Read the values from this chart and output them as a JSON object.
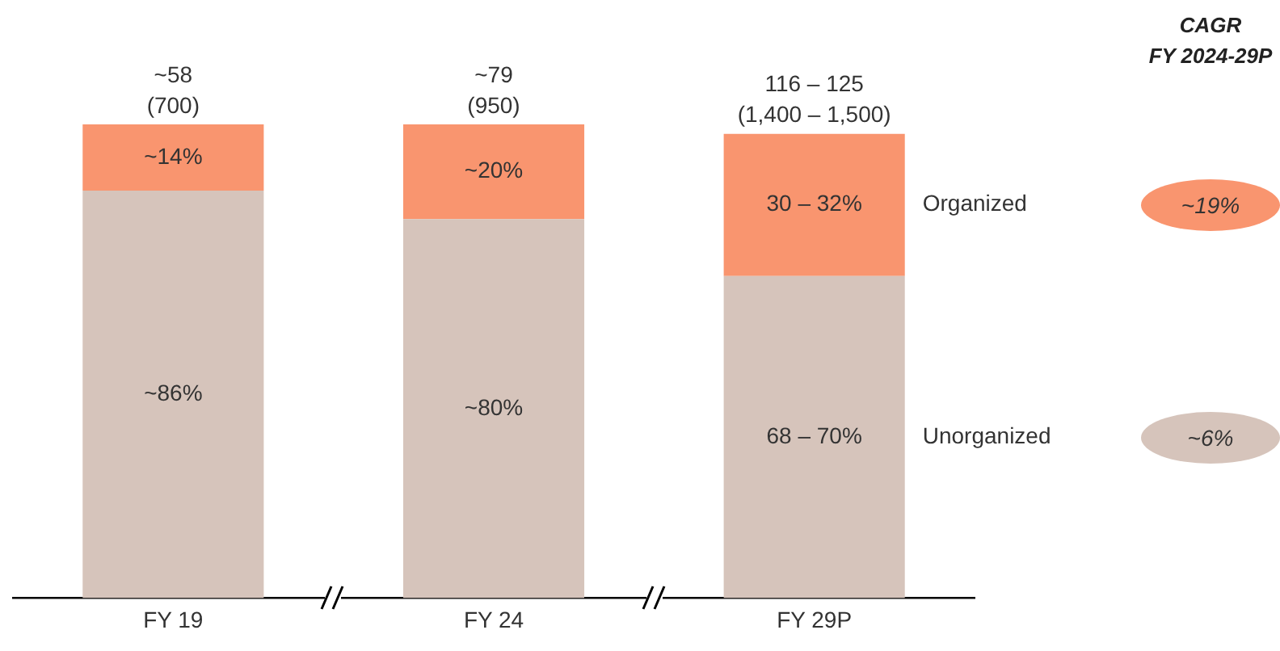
{
  "chart_data": {
    "type": "bar",
    "stacked": true,
    "tick_labels": "x",
    "categories": [
      "FY 19",
      "FY 24",
      "FY 29P"
    ],
    "series": [
      {
        "name": "Unorganized",
        "color": "#d6c4bb",
        "values": [
          86,
          80,
          68
        ],
        "value_labels": [
          "~86%",
          "~80%",
          "68 – 70%"
        ]
      },
      {
        "name": "Organized",
        "color": "#f9956f",
        "values": [
          14,
          20,
          30
        ],
        "value_labels": [
          "~14%",
          "~20%",
          "30 – 32%"
        ]
      }
    ],
    "totals": [
      "~58\n(700)",
      "~79\n(950)",
      "116 – 125\n(1,400 – 1,500)"
    ],
    "annotations": [
      "CAGR\nFY 2024-29P",
      "~19%",
      "~6%"
    ],
    "grid": false,
    "legend": false
  }
}
